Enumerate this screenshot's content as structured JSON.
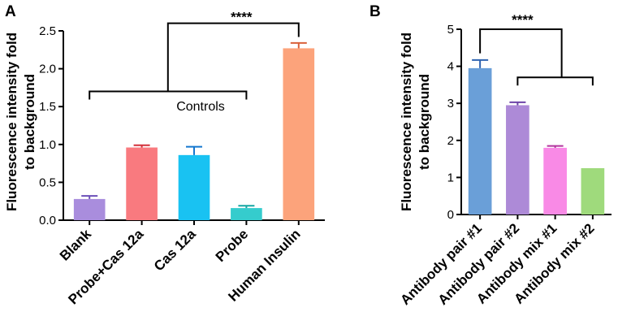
{
  "chart_data": [
    {
      "panel": "A",
      "type": "bar",
      "ylabel_line1": "Fluorescence intensity fold",
      "ylabel_line2": "to background",
      "xlabel": "",
      "ylim": [
        0,
        2.5
      ],
      "yticks": [
        "0.0",
        "0.5",
        "1.0",
        "1.5",
        "2.0",
        "2.5"
      ],
      "categories": [
        "Blank",
        "Probe+Cas 12a",
        "Cas 12a",
        "Probe",
        "Human Insulin"
      ],
      "values": [
        0.28,
        0.96,
        0.86,
        0.16,
        2.27
      ],
      "errors": [
        0.04,
        0.03,
        0.11,
        0.03,
        0.07
      ],
      "colors": [
        "#a98ddd",
        "#f97a7f",
        "#19c2f2",
        "#35cccd",
        "#fca37b"
      ],
      "error_colors": [
        "#6b4fb8",
        "#d3313a",
        "#1477cf",
        "#16a6a3",
        "#d9603a"
      ],
      "controls_label": "Controls",
      "significance": "****"
    },
    {
      "panel": "B",
      "type": "bar",
      "ylabel_line1": "Fluorescence intensity fold",
      "ylabel_line2": "to background",
      "xlabel": "",
      "ylim": [
        0,
        5
      ],
      "yticks": [
        "0",
        "1",
        "2",
        "3",
        "4",
        "5"
      ],
      "categories": [
        "Antibody pair #1",
        "Antibody pair #2",
        "Antibody mix #1",
        "Antibody mix #2"
      ],
      "values": [
        3.95,
        2.95,
        1.8,
        1.25
      ],
      "errors": [
        0.22,
        0.08,
        0.05,
        0.0
      ],
      "colors": [
        "#6a9fd8",
        "#ad8ad7",
        "#f98ae6",
        "#9fda7c"
      ],
      "error_colors": [
        "#2f63b0",
        "#6e45a8",
        "#b3349e",
        "#5e9d3b"
      ],
      "significance": "****"
    }
  ]
}
